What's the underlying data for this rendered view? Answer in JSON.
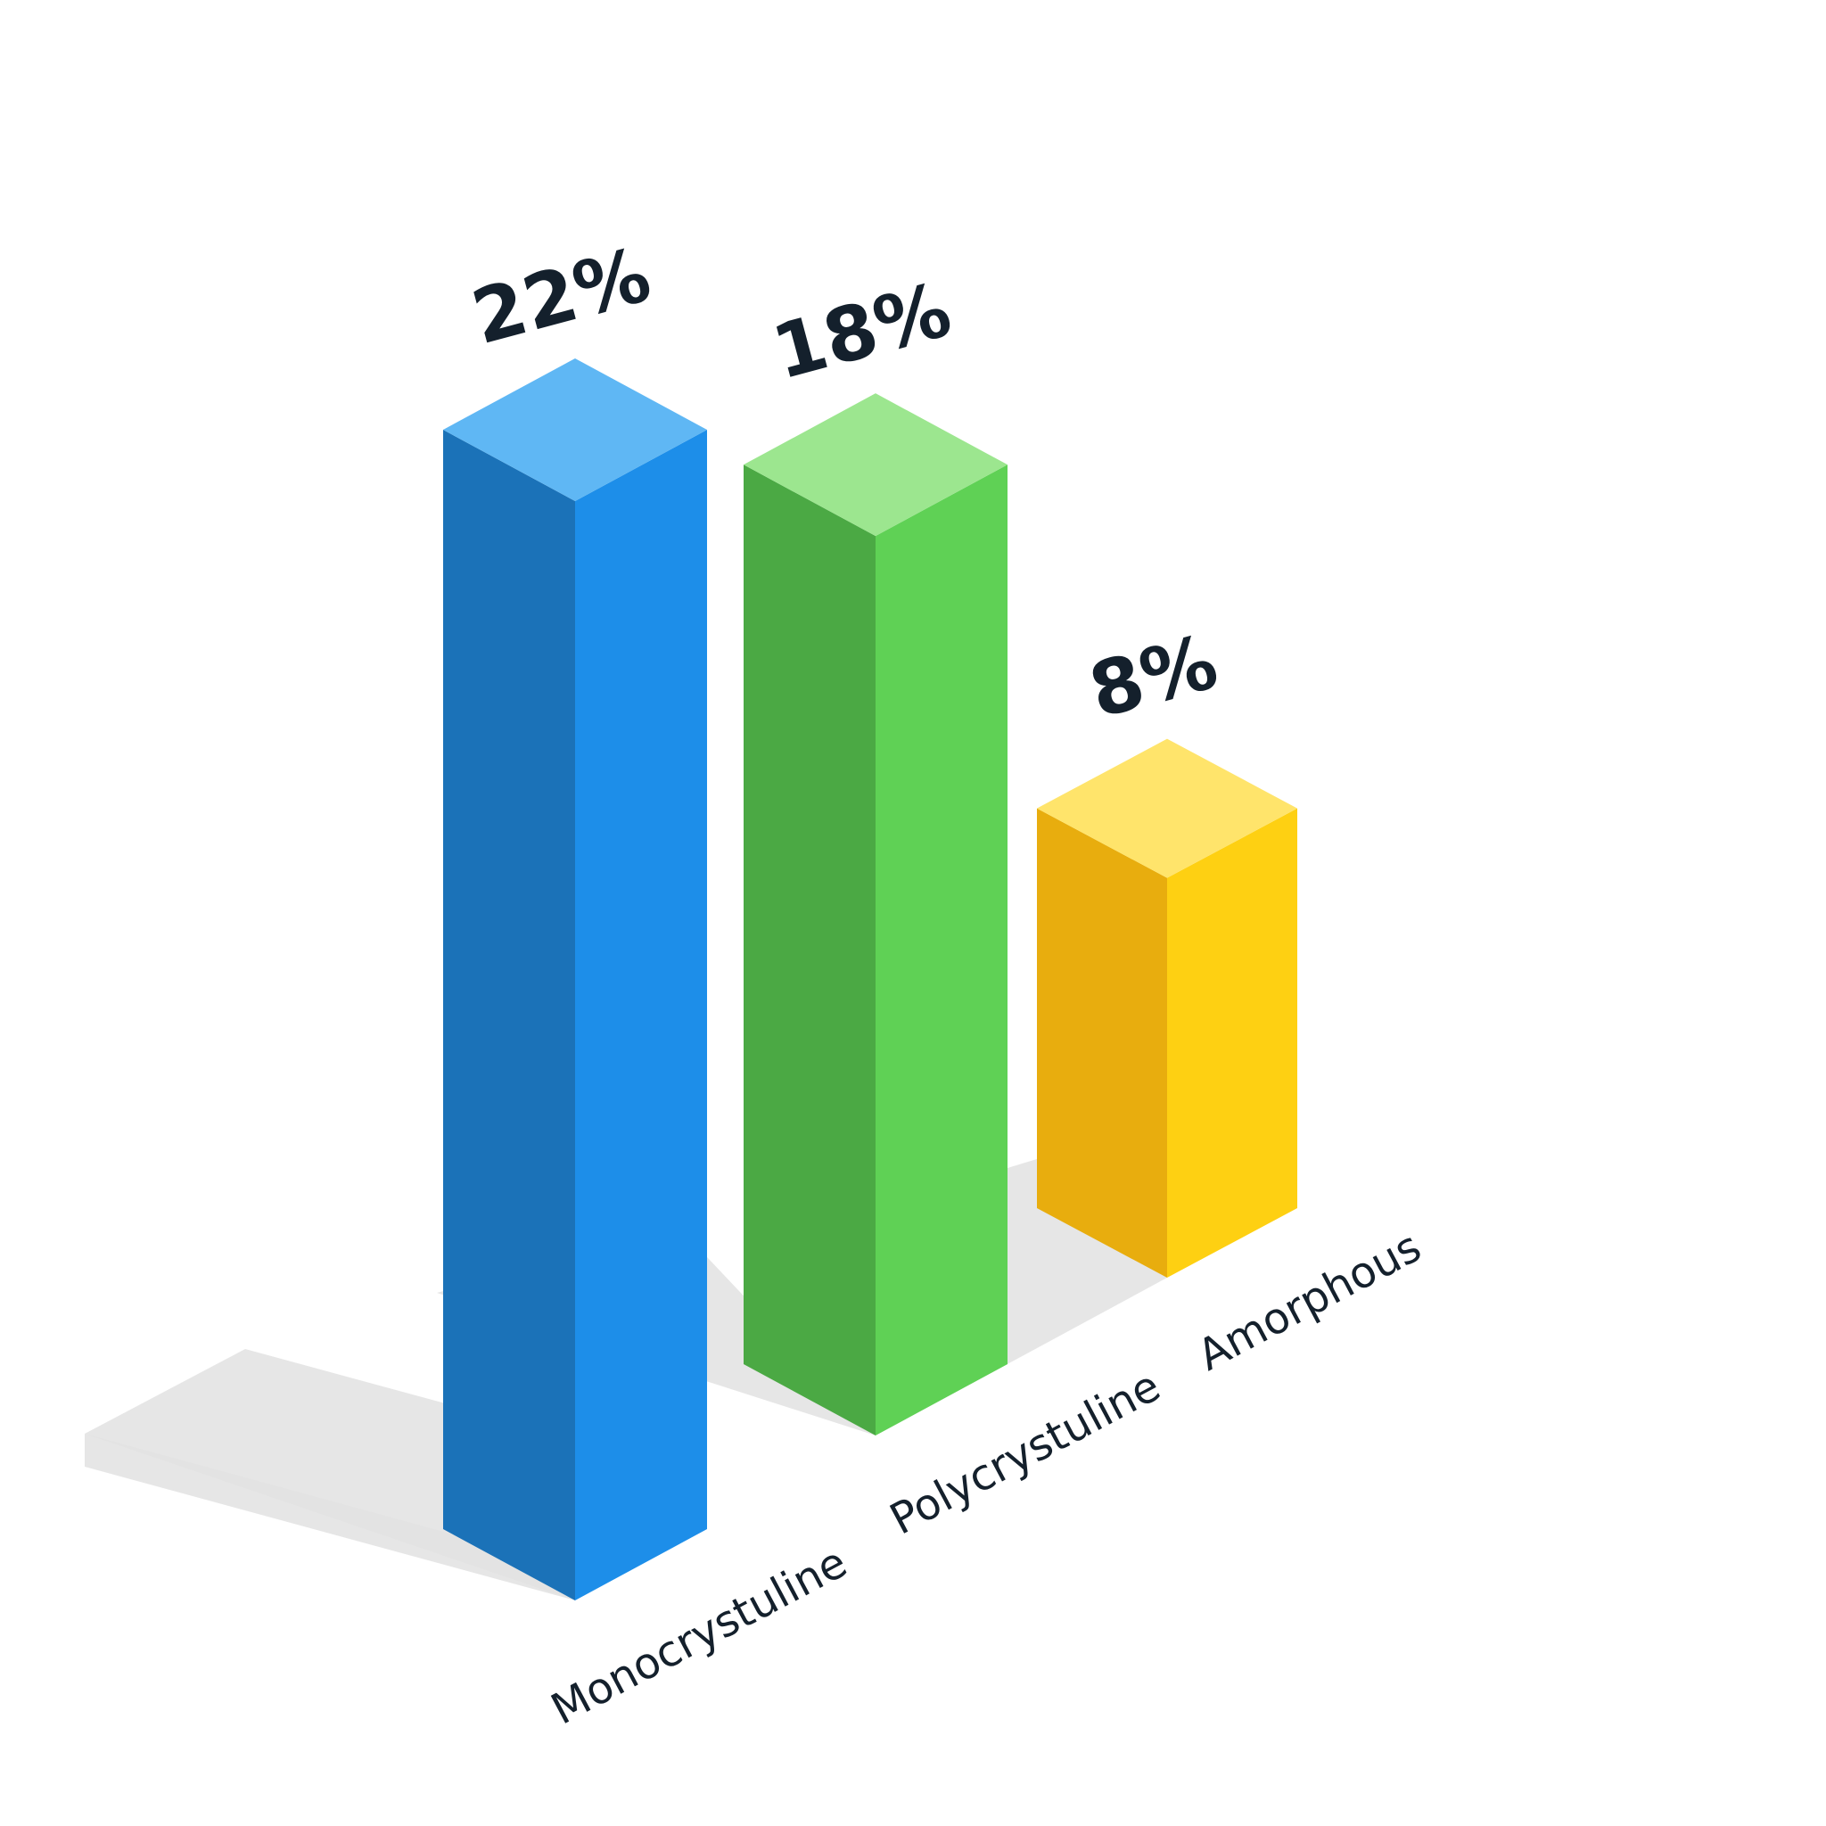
{
  "chart_data": {
    "type": "bar",
    "categories": [
      "Monocrystuline",
      "Polycrystuline",
      "Amorphous"
    ],
    "values": [
      22,
      18,
      8
    ],
    "value_labels": [
      "22%",
      "18%",
      "8%"
    ],
    "unit": "%",
    "style": "3d-isometric",
    "grid": false,
    "legend": "none",
    "colors": {
      "Monocrystuline": {
        "top": "#5fb7f4",
        "left": "#1b72b8",
        "right": "#1d8ee9"
      },
      "Polycrystuline": {
        "top": "#9ce68f",
        "left": "#4ba944",
        "right": "#5fd155"
      },
      "Amorphous": {
        "top": "#ffe46b",
        "left": "#e8ad0e",
        "right": "#fed012"
      }
    }
  }
}
